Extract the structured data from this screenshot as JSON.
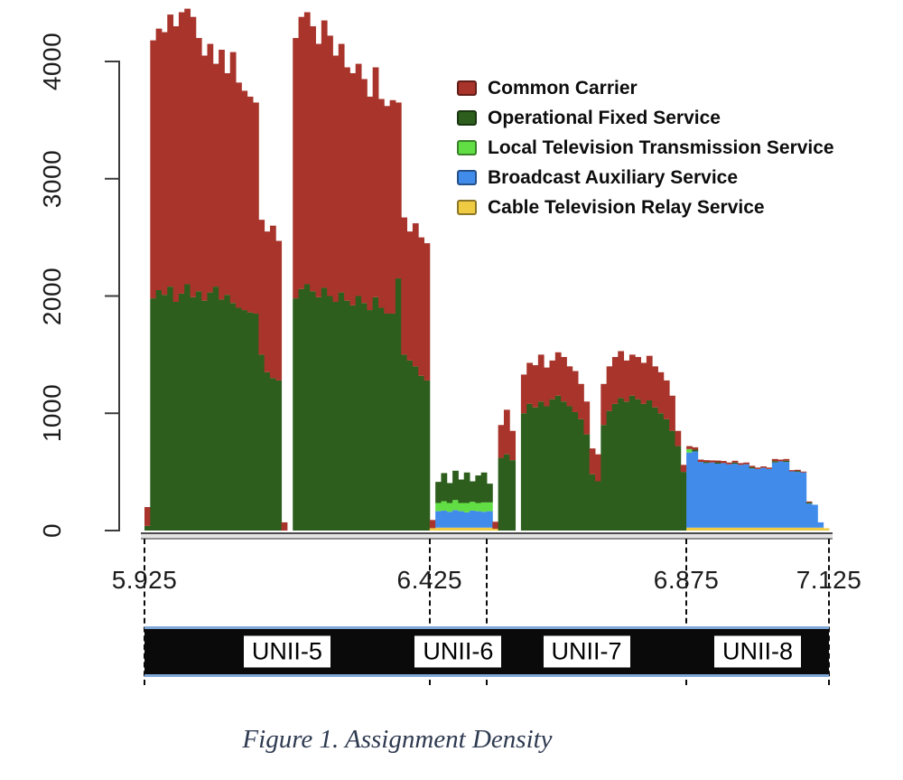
{
  "figure": {
    "caption": "Figure 1. Assignment Density"
  },
  "legend": {
    "items": [
      {
        "label": "Common Carrier",
        "color": "#a8342b"
      },
      {
        "label": "Operational Fixed Service",
        "color": "#2d5e1d"
      },
      {
        "label": "Local Television Transmission Service",
        "color": "#62de45"
      },
      {
        "label": "Broadcast Auxiliary Service",
        "color": "#418ceb"
      },
      {
        "label": "Cable Television Relay Service",
        "color": "#efcb44"
      }
    ]
  },
  "chart_data": {
    "type": "bar",
    "subtype": "stacked-frequency-histogram",
    "title": "Assignment Density",
    "x_unit": "GHz",
    "x_range_ghz": [
      5.925,
      7.125
    ],
    "bin_width_ghz": 0.01,
    "ylim": [
      0,
      4500
    ],
    "grid": false,
    "legend_position": "top-right",
    "y_ticks": [
      0,
      1000,
      2000,
      3000,
      4000
    ],
    "y_tick_labels": [
      "0",
      "1000",
      "2000",
      "3000",
      "4000"
    ],
    "x_tick_labels": [
      "5.925",
      "6.425",
      "6.875",
      "7.125"
    ],
    "band_boundaries_ghz": [
      5.925,
      6.425,
      6.525,
      6.875,
      7.125
    ],
    "unii_bands": [
      {
        "label": "UNII-5",
        "from_ghz": 5.925,
        "to_ghz": 6.425
      },
      {
        "label": "UNII-6",
        "from_ghz": 6.425,
        "to_ghz": 6.525
      },
      {
        "label": "UNII-7",
        "from_ghz": 6.525,
        "to_ghz": 6.875
      },
      {
        "label": "UNII-8",
        "from_ghz": 6.875,
        "to_ghz": 7.125
      }
    ],
    "series": [
      {
        "name": "Cable Television Relay Service",
        "color": "#efcb44",
        "values": [
          0,
          0,
          0,
          0,
          0,
          0,
          0,
          0,
          0,
          0,
          0,
          0,
          0,
          0,
          0,
          0,
          0,
          0,
          0,
          0,
          0,
          0,
          0,
          0,
          0,
          0,
          0,
          0,
          0,
          0,
          0,
          0,
          0,
          0,
          0,
          0,
          0,
          0,
          0,
          0,
          0,
          0,
          0,
          0,
          0,
          0,
          0,
          0,
          0,
          0,
          20,
          25,
          25,
          25,
          25,
          25,
          25,
          25,
          25,
          25,
          25,
          15,
          0,
          0,
          0,
          0,
          0,
          0,
          0,
          0,
          0,
          0,
          0,
          0,
          0,
          0,
          0,
          0,
          0,
          0,
          0,
          0,
          0,
          0,
          0,
          0,
          0,
          0,
          0,
          0,
          0,
          0,
          0,
          0,
          0,
          25,
          25,
          25,
          25,
          25,
          25,
          25,
          25,
          25,
          25,
          25,
          25,
          25,
          25,
          25,
          25,
          25,
          25,
          25,
          25,
          25,
          25,
          25,
          25,
          20
        ]
      },
      {
        "name": "Broadcast Auxiliary Service",
        "color": "#418ceb",
        "values": [
          0,
          0,
          0,
          0,
          0,
          0,
          0,
          0,
          0,
          0,
          0,
          0,
          0,
          0,
          0,
          0,
          0,
          0,
          0,
          0,
          0,
          0,
          0,
          0,
          0,
          0,
          0,
          0,
          0,
          0,
          0,
          0,
          0,
          0,
          0,
          0,
          0,
          0,
          0,
          0,
          0,
          0,
          0,
          0,
          0,
          0,
          0,
          0,
          0,
          0,
          0,
          140,
          145,
          135,
          150,
          140,
          130,
          145,
          140,
          135,
          140,
          0,
          0,
          0,
          0,
          0,
          0,
          0,
          0,
          0,
          0,
          0,
          0,
          0,
          0,
          0,
          0,
          0,
          0,
          0,
          0,
          0,
          0,
          0,
          0,
          0,
          0,
          0,
          0,
          0,
          0,
          0,
          0,
          0,
          0,
          640,
          650,
          560,
          550,
          555,
          545,
          550,
          540,
          545,
          535,
          540,
          505,
          500,
          510,
          500,
          555,
          565,
          560,
          480,
          475,
          470,
          205,
          195,
          45,
          0
        ]
      },
      {
        "name": "Local Television Transmission Service",
        "color": "#62de45",
        "values": [
          0,
          0,
          0,
          0,
          0,
          0,
          0,
          0,
          0,
          0,
          0,
          0,
          0,
          0,
          0,
          0,
          0,
          0,
          0,
          0,
          0,
          0,
          0,
          0,
          0,
          0,
          0,
          0,
          0,
          0,
          0,
          0,
          0,
          0,
          0,
          0,
          0,
          0,
          0,
          0,
          0,
          0,
          0,
          0,
          0,
          0,
          0,
          0,
          0,
          0,
          0,
          70,
          80,
          75,
          85,
          70,
          80,
          75,
          70,
          80,
          75,
          0,
          0,
          0,
          0,
          0,
          0,
          0,
          0,
          0,
          0,
          0,
          0,
          0,
          0,
          0,
          0,
          0,
          0,
          0,
          0,
          0,
          0,
          0,
          0,
          0,
          0,
          0,
          0,
          0,
          0,
          0,
          0,
          0,
          0,
          30,
          0,
          0,
          0,
          0,
          0,
          0,
          0,
          0,
          0,
          0,
          0,
          0,
          0,
          0,
          0,
          0,
          0,
          0,
          0,
          0,
          0,
          0,
          0,
          0
        ]
      },
      {
        "name": "Operational Fixed Service",
        "color": "#2d5e1d",
        "values": [
          40,
          1980,
          2050,
          2010,
          2080,
          1950,
          2020,
          2100,
          1990,
          2040,
          1960,
          2030,
          2080,
          1970,
          2010,
          1940,
          1900,
          1880,
          1860,
          1850,
          1500,
          1350,
          1300,
          1280,
          0,
          0,
          1980,
          2060,
          2100,
          2040,
          1990,
          2070,
          2000,
          1950,
          2030,
          1960,
          1920,
          2000,
          1940,
          1880,
          1990,
          1900,
          1850,
          1850,
          2150,
          1500,
          1450,
          1400,
          1320,
          1280,
          0,
          180,
          240,
          170,
          250,
          200,
          260,
          175,
          235,
          255,
          160,
          0,
          620,
          650,
          600,
          0,
          1000,
          1080,
          1050,
          1100,
          1060,
          1120,
          1150,
          1100,
          1060,
          1010,
          950,
          820,
          480,
          420,
          900,
          1020,
          1080,
          1130,
          1100,
          1150,
          1120,
          1080,
          1110,
          1050,
          1000,
          950,
          850,
          720,
          500,
          0,
          15,
          0,
          10,
          0,
          12,
          0,
          0,
          10,
          0,
          0,
          10,
          0,
          0,
          0,
          12,
          0,
          10,
          0,
          8,
          0,
          10,
          0,
          0,
          0
        ]
      },
      {
        "name": "Common Carrier",
        "color": "#a8342b",
        "values": [
          160,
          2200,
          2230,
          2240,
          2320,
          2350,
          2400,
          2350,
          2390,
          2160,
          2090,
          2120,
          1900,
          2130,
          1890,
          2140,
          1920,
          1870,
          1840,
          1800,
          1150,
          1200,
          1300,
          1190,
          70,
          0,
          2220,
          2320,
          2320,
          2260,
          2160,
          2280,
          2220,
          2100,
          2120,
          1990,
          1980,
          1980,
          1910,
          1820,
          1960,
          1780,
          1770,
          1820,
          1500,
          1170,
          1100,
          1220,
          1180,
          1170,
          70,
          0,
          0,
          0,
          0,
          0,
          0,
          0,
          0,
          0,
          0,
          60,
          280,
          380,
          250,
          0,
          330,
          350,
          360,
          400,
          330,
          330,
          370,
          380,
          340,
          350,
          300,
          280,
          220,
          230,
          350,
          380,
          400,
          400,
          350,
          350,
          360,
          350,
          380,
          350,
          350,
          330,
          300,
          130,
          60,
          25,
          20,
          20,
          15,
          18,
          15,
          18,
          15,
          15,
          15,
          15,
          12,
          12,
          12,
          12,
          18,
          15,
          15,
          10,
          10,
          8,
          8,
          0,
          0,
          0
        ]
      }
    ]
  }
}
